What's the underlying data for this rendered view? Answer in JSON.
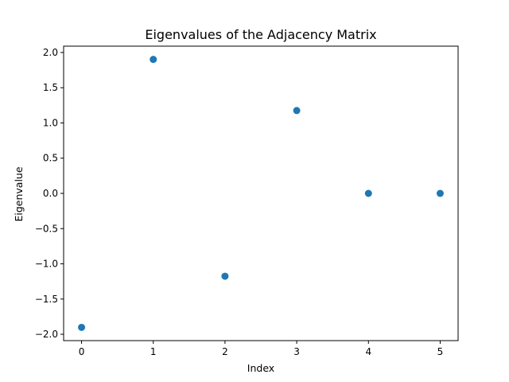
{
  "chart_data": {
    "type": "scatter",
    "title": "Eigenvalues of the Adjacency Matrix",
    "xlabel": "Index",
    "ylabel": "Eigenvalue",
    "x": [
      0,
      1,
      2,
      3,
      4,
      5
    ],
    "y": [
      -1.902,
      1.902,
      -1.176,
      1.176,
      0.0,
      0.0
    ],
    "xlim": [
      -0.25,
      5.25
    ],
    "ylim": [
      -2.09,
      2.09
    ],
    "xticks": [
      0,
      1,
      2,
      3,
      4,
      5
    ],
    "yticks": [
      -2.0,
      -1.5,
      -1.0,
      -0.5,
      0.0,
      0.5,
      1.0,
      1.5,
      2.0
    ],
    "xtick_labels": [
      "0",
      "1",
      "2",
      "3",
      "4",
      "5"
    ],
    "ytick_labels": [
      "−2.0",
      "−1.5",
      "−1.0",
      "−0.5",
      "0.0",
      "0.5",
      "1.0",
      "1.5",
      "2.0"
    ],
    "grid": false,
    "marker_color": "#1f77b4"
  }
}
